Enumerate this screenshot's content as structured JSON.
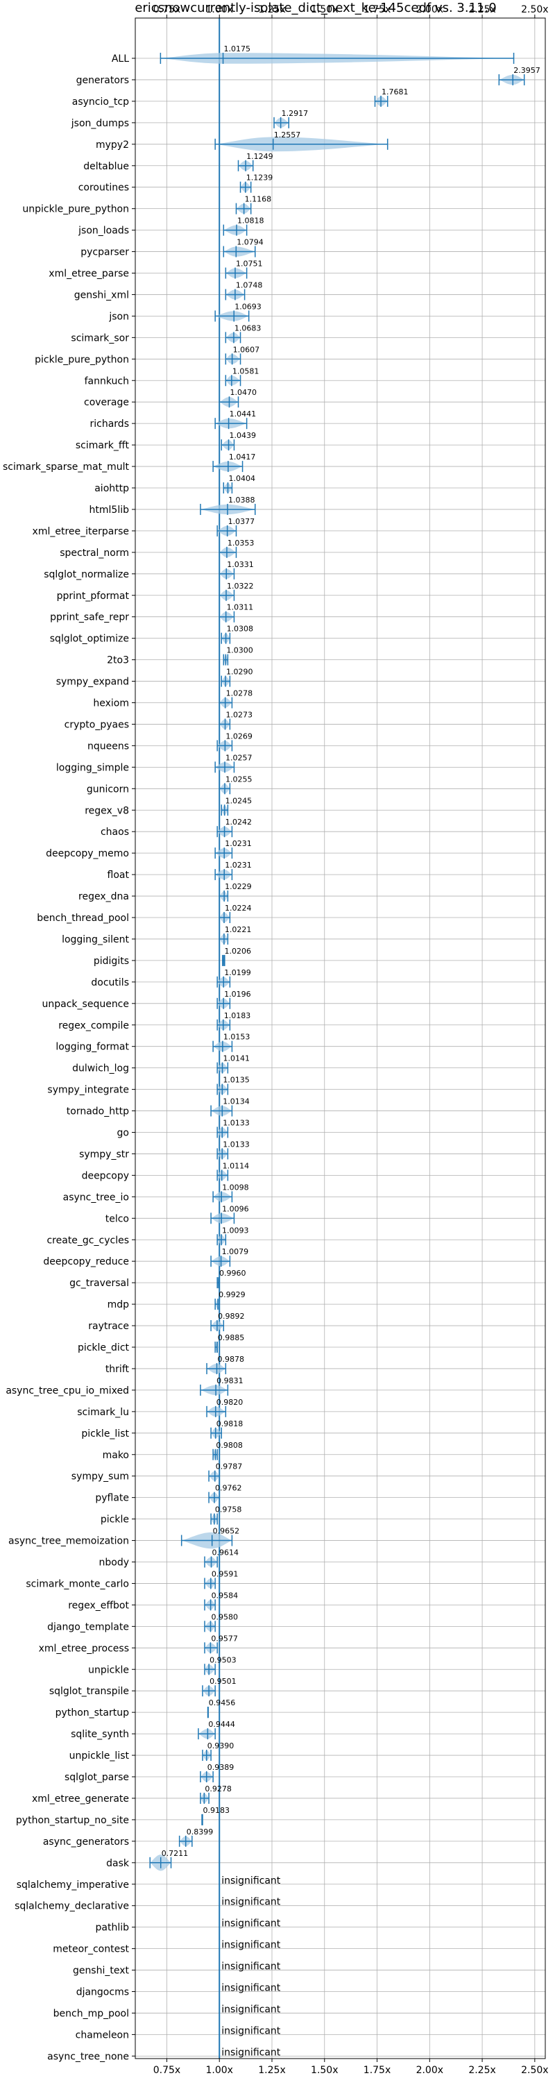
{
  "chart_data": {
    "type": "violin",
    "title": "ericsnowcurrently-isolate_dict_next_ke-145cedf vs. 3.11.0",
    "xlim": [
      0.6,
      2.55
    ],
    "xticks": [
      0.75,
      1.0,
      1.25,
      1.5,
      1.75,
      2.0,
      2.25,
      2.5
    ],
    "xtick_labels": [
      "0.75x",
      "1.00x",
      "1.25x",
      "1.50x",
      "1.75x",
      "2.00x",
      "2.25x",
      "2.50x"
    ],
    "reference_line": 1.0,
    "grid": true,
    "colors": {
      "violin": "#a6c9e4",
      "line": "#1f77b4",
      "grid": "#b0b0b0"
    },
    "insignificant_text": "insignificant",
    "benchmarks": [
      {
        "name": "ALL",
        "median": 1.0175,
        "min": 0.72,
        "max": 2.4,
        "label": "1.0175",
        "width": 0.6
      },
      {
        "name": "generators",
        "median": 2.3957,
        "min": 2.33,
        "max": 2.45,
        "label": "2.3957"
      },
      {
        "name": "asyncio_tcp",
        "median": 1.7681,
        "min": 1.74,
        "max": 1.8,
        "label": "1.7681"
      },
      {
        "name": "json_dumps",
        "median": 1.2917,
        "min": 1.26,
        "max": 1.33,
        "label": "1.2917"
      },
      {
        "name": "mypy2",
        "median": 1.2557,
        "min": 0.98,
        "max": 1.8,
        "label": "1.2557",
        "width": 0.8
      },
      {
        "name": "deltablue",
        "median": 1.1249,
        "min": 1.09,
        "max": 1.16,
        "label": "1.1249"
      },
      {
        "name": "coroutines",
        "median": 1.1239,
        "min": 1.1,
        "max": 1.15,
        "label": "1.1239"
      },
      {
        "name": "unpickle_pure_python",
        "median": 1.1168,
        "min": 1.08,
        "max": 1.15,
        "label": "1.1168"
      },
      {
        "name": "json_loads",
        "median": 1.0818,
        "min": 1.02,
        "max": 1.13,
        "label": "1.0818"
      },
      {
        "name": "pycparser",
        "median": 1.0794,
        "min": 1.02,
        "max": 1.17,
        "label": "1.0794"
      },
      {
        "name": "xml_etree_parse",
        "median": 1.0751,
        "min": 1.03,
        "max": 1.13,
        "label": "1.0751"
      },
      {
        "name": "genshi_xml",
        "median": 1.0748,
        "min": 1.03,
        "max": 1.12,
        "label": "1.0748"
      },
      {
        "name": "json",
        "median": 1.0693,
        "min": 0.98,
        "max": 1.14,
        "label": "1.0693"
      },
      {
        "name": "scimark_sor",
        "median": 1.0683,
        "min": 1.03,
        "max": 1.1,
        "label": "1.0683"
      },
      {
        "name": "pickle_pure_python",
        "median": 1.0607,
        "min": 1.03,
        "max": 1.1,
        "label": "1.0607"
      },
      {
        "name": "fannkuch",
        "median": 1.0581,
        "min": 1.03,
        "max": 1.1,
        "label": "1.0581"
      },
      {
        "name": "coverage",
        "median": 1.047,
        "min": 1.0,
        "max": 1.09,
        "label": "1.0470"
      },
      {
        "name": "richards",
        "median": 1.0441,
        "min": 0.98,
        "max": 1.13,
        "label": "1.0441"
      },
      {
        "name": "scimark_fft",
        "median": 1.0439,
        "min": 1.01,
        "max": 1.07,
        "label": "1.0439"
      },
      {
        "name": "scimark_sparse_mat_mult",
        "median": 1.0417,
        "min": 0.97,
        "max": 1.11,
        "label": "1.0417"
      },
      {
        "name": "aiohttp",
        "median": 1.0404,
        "min": 1.02,
        "max": 1.06,
        "label": "1.0404"
      },
      {
        "name": "html5lib",
        "median": 1.0388,
        "min": 0.91,
        "max": 1.17,
        "label": "1.0388"
      },
      {
        "name": "xml_etree_iterparse",
        "median": 1.0377,
        "min": 0.99,
        "max": 1.08,
        "label": "1.0377"
      },
      {
        "name": "spectral_norm",
        "median": 1.0353,
        "min": 1.0,
        "max": 1.08,
        "label": "1.0353"
      },
      {
        "name": "sqlglot_normalize",
        "median": 1.0331,
        "min": 1.0,
        "max": 1.07,
        "label": "1.0331"
      },
      {
        "name": "pprint_pformat",
        "median": 1.0322,
        "min": 1.0,
        "max": 1.07,
        "label": "1.0322"
      },
      {
        "name": "pprint_safe_repr",
        "median": 1.0311,
        "min": 1.0,
        "max": 1.07,
        "label": "1.0311"
      },
      {
        "name": "sqlglot_optimize",
        "median": 1.0308,
        "min": 1.01,
        "max": 1.05,
        "label": "1.0308"
      },
      {
        "name": "2to3",
        "median": 1.03,
        "min": 1.02,
        "max": 1.04,
        "label": "1.0300"
      },
      {
        "name": "sympy_expand",
        "median": 1.029,
        "min": 1.01,
        "max": 1.05,
        "label": "1.0290"
      },
      {
        "name": "hexiom",
        "median": 1.0278,
        "min": 1.0,
        "max": 1.06,
        "label": "1.0278"
      },
      {
        "name": "crypto_pyaes",
        "median": 1.0273,
        "min": 1.0,
        "max": 1.05,
        "label": "1.0273"
      },
      {
        "name": "nqueens",
        "median": 1.0269,
        "min": 0.99,
        "max": 1.06,
        "label": "1.0269"
      },
      {
        "name": "logging_simple",
        "median": 1.0257,
        "min": 0.98,
        "max": 1.07,
        "label": "1.0257"
      },
      {
        "name": "gunicorn",
        "median": 1.0255,
        "min": 1.0,
        "max": 1.05,
        "label": "1.0255"
      },
      {
        "name": "regex_v8",
        "median": 1.0245,
        "min": 1.01,
        "max": 1.04,
        "label": "1.0245"
      },
      {
        "name": "chaos",
        "median": 1.0242,
        "min": 0.99,
        "max": 1.06,
        "label": "1.0242"
      },
      {
        "name": "deepcopy_memo",
        "median": 1.0231,
        "min": 0.98,
        "max": 1.06,
        "label": "1.0231"
      },
      {
        "name": "float",
        "median": 1.0231,
        "min": 0.98,
        "max": 1.06,
        "label": "1.0231"
      },
      {
        "name": "regex_dna",
        "median": 1.0229,
        "min": 1.0,
        "max": 1.04,
        "label": "1.0229"
      },
      {
        "name": "bench_thread_pool",
        "median": 1.0224,
        "min": 1.0,
        "max": 1.05,
        "label": "1.0224"
      },
      {
        "name": "logging_silent",
        "median": 1.0221,
        "min": 1.0,
        "max": 1.04,
        "label": "1.0221"
      },
      {
        "name": "pidigits",
        "median": 1.0206,
        "min": 1.015,
        "max": 1.025,
        "label": "1.0206"
      },
      {
        "name": "docutils",
        "median": 1.0199,
        "min": 0.99,
        "max": 1.05,
        "label": "1.0199"
      },
      {
        "name": "unpack_sequence",
        "median": 1.0196,
        "min": 0.99,
        "max": 1.05,
        "label": "1.0196"
      },
      {
        "name": "regex_compile",
        "median": 1.0183,
        "min": 0.99,
        "max": 1.05,
        "label": "1.0183"
      },
      {
        "name": "logging_format",
        "median": 1.0153,
        "min": 0.97,
        "max": 1.06,
        "label": "1.0153"
      },
      {
        "name": "dulwich_log",
        "median": 1.0141,
        "min": 0.99,
        "max": 1.04,
        "label": "1.0141"
      },
      {
        "name": "sympy_integrate",
        "median": 1.0135,
        "min": 0.99,
        "max": 1.04,
        "label": "1.0135"
      },
      {
        "name": "tornado_http",
        "median": 1.0134,
        "min": 0.96,
        "max": 1.06,
        "label": "1.0134"
      },
      {
        "name": "go",
        "median": 1.0133,
        "min": 0.99,
        "max": 1.04,
        "label": "1.0133"
      },
      {
        "name": "sympy_str",
        "median": 1.0133,
        "min": 0.99,
        "max": 1.04,
        "label": "1.0133"
      },
      {
        "name": "deepcopy",
        "median": 1.0114,
        "min": 0.99,
        "max": 1.04,
        "label": "1.0114"
      },
      {
        "name": "async_tree_io",
        "median": 1.0098,
        "min": 0.97,
        "max": 1.06,
        "label": "1.0098"
      },
      {
        "name": "telco",
        "median": 1.0096,
        "min": 0.96,
        "max": 1.07,
        "label": "1.0096"
      },
      {
        "name": "create_gc_cycles",
        "median": 1.0093,
        "min": 0.99,
        "max": 1.03,
        "label": "1.0093"
      },
      {
        "name": "deepcopy_reduce",
        "median": 1.0079,
        "min": 0.96,
        "max": 1.05,
        "label": "1.0079"
      },
      {
        "name": "gc_traversal",
        "median": 0.996,
        "min": 0.99,
        "max": 1.0,
        "label": "0.9960"
      },
      {
        "name": "mdp",
        "median": 0.9929,
        "min": 0.98,
        "max": 1.0,
        "label": "0.9929"
      },
      {
        "name": "raytrace",
        "median": 0.9892,
        "min": 0.96,
        "max": 1.02,
        "label": "0.9892"
      },
      {
        "name": "pickle_dict",
        "median": 0.9885,
        "min": 0.98,
        "max": 0.99,
        "label": "0.9885"
      },
      {
        "name": "thrift",
        "median": 0.9878,
        "min": 0.94,
        "max": 1.03,
        "label": "0.9878"
      },
      {
        "name": "async_tree_cpu_io_mixed",
        "median": 0.9831,
        "min": 0.91,
        "max": 1.04,
        "label": "0.9831"
      },
      {
        "name": "scimark_lu",
        "median": 0.982,
        "min": 0.94,
        "max": 1.03,
        "label": "0.9820"
      },
      {
        "name": "pickle_list",
        "median": 0.9818,
        "min": 0.96,
        "max": 1.01,
        "label": "0.9818"
      },
      {
        "name": "mako",
        "median": 0.9808,
        "min": 0.97,
        "max": 0.99,
        "label": "0.9808"
      },
      {
        "name": "sympy_sum",
        "median": 0.9787,
        "min": 0.95,
        "max": 1.0,
        "label": "0.9787"
      },
      {
        "name": "pyflate",
        "median": 0.9762,
        "min": 0.95,
        "max": 1.0,
        "label": "0.9762"
      },
      {
        "name": "pickle",
        "median": 0.9758,
        "min": 0.96,
        "max": 0.99,
        "label": "0.9758"
      },
      {
        "name": "async_tree_memoization",
        "median": 0.9652,
        "min": 0.82,
        "max": 1.06,
        "label": "0.9652",
        "width": 0.9
      },
      {
        "name": "nbody",
        "median": 0.9614,
        "min": 0.93,
        "max": 0.99,
        "label": "0.9614"
      },
      {
        "name": "scimark_monte_carlo",
        "median": 0.9591,
        "min": 0.93,
        "max": 0.98,
        "label": "0.9591"
      },
      {
        "name": "regex_effbot",
        "median": 0.9584,
        "min": 0.93,
        "max": 0.98,
        "label": "0.9584"
      },
      {
        "name": "django_template",
        "median": 0.958,
        "min": 0.93,
        "max": 0.98,
        "label": "0.9580"
      },
      {
        "name": "xml_etree_process",
        "median": 0.9577,
        "min": 0.93,
        "max": 0.99,
        "label": "0.9577"
      },
      {
        "name": "unpickle",
        "median": 0.9503,
        "min": 0.93,
        "max": 0.98,
        "label": "0.9503"
      },
      {
        "name": "sqlglot_transpile",
        "median": 0.9501,
        "min": 0.92,
        "max": 0.98,
        "label": "0.9501"
      },
      {
        "name": "python_startup",
        "median": 0.9456,
        "min": 0.945,
        "max": 0.947,
        "label": "0.9456"
      },
      {
        "name": "sqlite_synth",
        "median": 0.9444,
        "min": 0.9,
        "max": 0.98,
        "label": "0.9444"
      },
      {
        "name": "unpickle_list",
        "median": 0.939,
        "min": 0.92,
        "max": 0.96,
        "label": "0.9390"
      },
      {
        "name": "sqlglot_parse",
        "median": 0.9389,
        "min": 0.91,
        "max": 0.97,
        "label": "0.9389"
      },
      {
        "name": "xml_etree_generate",
        "median": 0.9278,
        "min": 0.91,
        "max": 0.95,
        "label": "0.9278"
      },
      {
        "name": "python_startup_no_site",
        "median": 0.9183,
        "min": 0.917,
        "max": 0.92,
        "label": "0.9183"
      },
      {
        "name": "async_generators",
        "median": 0.8399,
        "min": 0.81,
        "max": 0.87,
        "label": "0.8399"
      },
      {
        "name": "dask",
        "median": 0.7211,
        "min": 0.67,
        "max": 0.77,
        "label": "0.7211",
        "width": 0.9
      },
      {
        "name": "sqlalchemy_imperative",
        "insignificant": true
      },
      {
        "name": "sqlalchemy_declarative",
        "insignificant": true
      },
      {
        "name": "pathlib",
        "insignificant": true
      },
      {
        "name": "meteor_contest",
        "insignificant": true
      },
      {
        "name": "genshi_text",
        "insignificant": true
      },
      {
        "name": "djangocms",
        "insignificant": true
      },
      {
        "name": "bench_mp_pool",
        "insignificant": true
      },
      {
        "name": "chameleon",
        "insignificant": true
      },
      {
        "name": "async_tree_none",
        "insignificant": true
      }
    ]
  }
}
